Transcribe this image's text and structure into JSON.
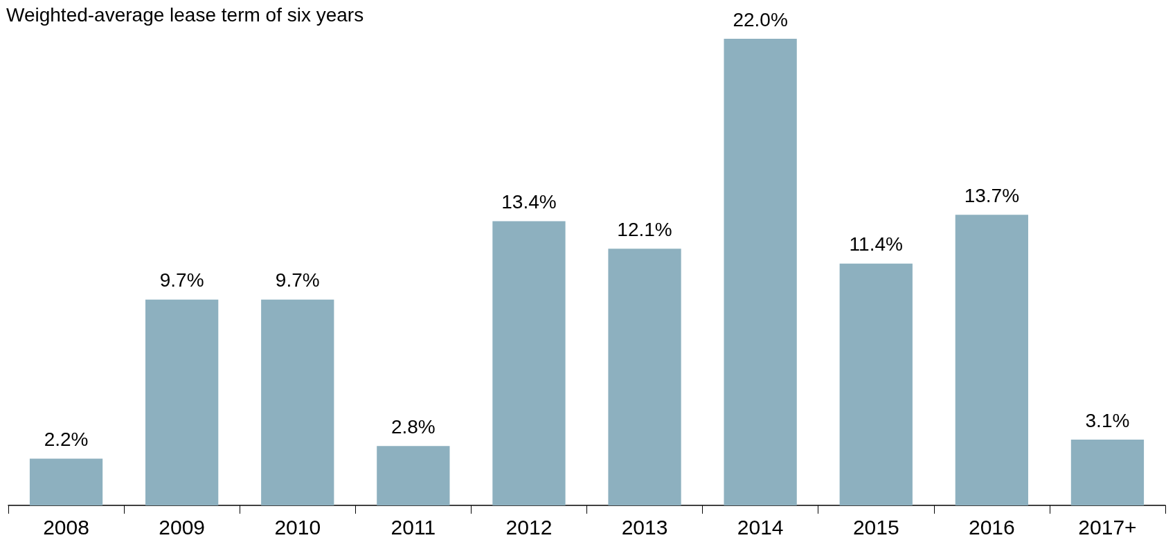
{
  "chart_data": {
    "type": "bar",
    "title": "Weighted-average lease term of six years",
    "categories": [
      "2008",
      "2009",
      "2010",
      "2011",
      "2012",
      "2013",
      "2014",
      "2015",
      "2016",
      "2017+"
    ],
    "values": [
      2.2,
      9.7,
      9.7,
      2.8,
      13.4,
      12.1,
      22.0,
      11.4,
      13.7,
      3.1
    ],
    "value_labels": [
      "2.2%",
      "9.7%",
      "9.7%",
      "2.8%",
      "13.4%",
      "12.1%",
      "22.0%",
      "11.4%",
      "13.7%",
      "3.1%"
    ],
    "color": "#8db0bf"
  }
}
